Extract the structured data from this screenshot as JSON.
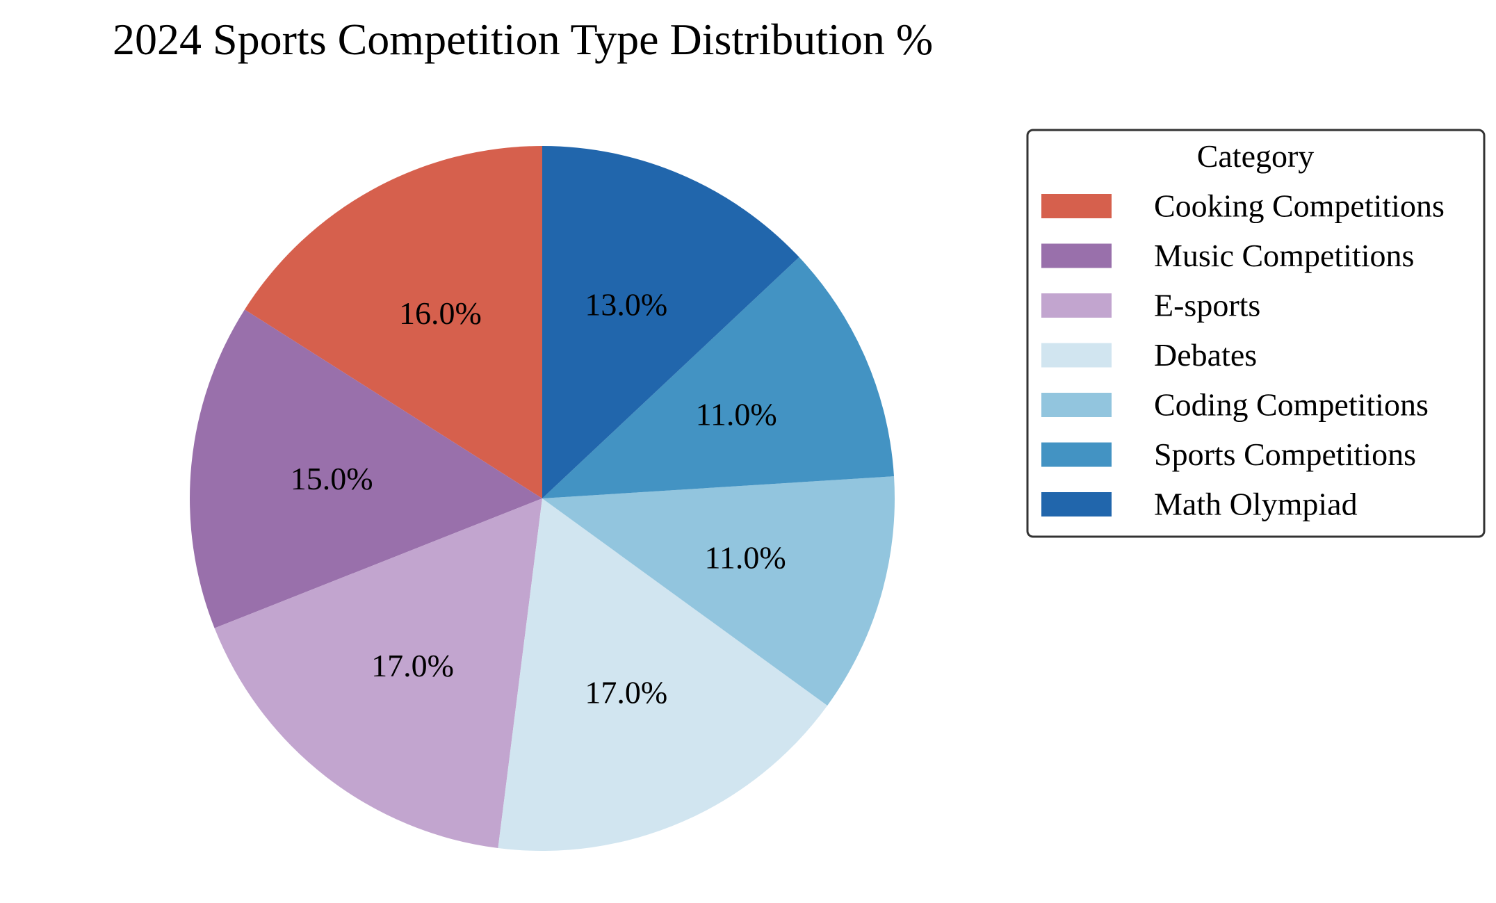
{
  "chart_data": {
    "type": "pie",
    "title": "2024 Sports Competition Type Distribution %",
    "categories": [
      "Cooking Competitions",
      "Music Competitions",
      "E-sports",
      "Debates",
      "Coding Competitions",
      "Sports Competitions",
      "Math Olympiad"
    ],
    "values": [
      16.0,
      15.0,
      17.0,
      17.0,
      11.0,
      11.0,
      13.0
    ],
    "value_labels": [
      "16.0%",
      "15.0%",
      "17.0%",
      "17.0%",
      "11.0%",
      "11.0%",
      "13.0%"
    ],
    "colors": [
      "#d6604d",
      "#9970ab",
      "#c2a5cf",
      "#d1e5f0",
      "#92c5de",
      "#4393c3",
      "#2166ac"
    ],
    "start_angle_deg": 90,
    "direction": "counterclockwise",
    "legend": {
      "title": "Category",
      "placement": "right"
    }
  }
}
